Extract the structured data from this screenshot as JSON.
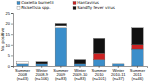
{
  "chart_data": {
    "type": "bar",
    "stacked": true,
    "categories": [
      "Summer\n2008\n(n=43)",
      "Winter\n2008-9\n(n=106)",
      "Summer\n2009\n(n=83)",
      "Winter\n2009-10\n(n=83)",
      "Summer\n2010\n(n=101)",
      "Winter\n2010-11\n(n=37)",
      "Summer\n2011\n(n=46)"
    ],
    "series": [
      {
        "name": "Coxiella burnetii",
        "color": "#3B8ECA",
        "values": [
          1,
          1,
          18,
          1,
          3,
          1,
          8
        ]
      },
      {
        "name": "Hantavirus",
        "color": "#CC2222",
        "values": [
          0,
          0,
          0,
          0,
          3,
          0,
          2
        ]
      },
      {
        "name": "Rickettsia spp.",
        "color": "#FFFFFF",
        "values": [
          1,
          0,
          1,
          0,
          0,
          0,
          0
        ]
      },
      {
        "name": "Sandfly fever virus",
        "color": "#111111",
        "values": [
          0,
          1,
          1,
          2,
          7,
          0,
          8
        ]
      }
    ],
    "ylabel": "No. positive",
    "ylim": [
      0,
      25
    ],
    "yticks": [
      0,
      5,
      10,
      15,
      20,
      25
    ],
    "legend": "upper left"
  }
}
